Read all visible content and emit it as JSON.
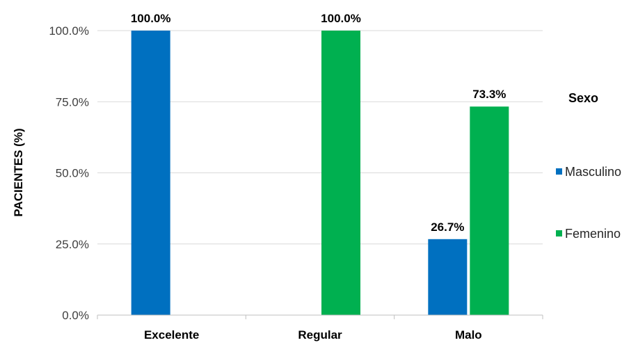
{
  "chart_data": {
    "type": "bar",
    "ylabel": "PACIENTES (%)",
    "categories": [
      "Excelente",
      "Regular",
      "Malo"
    ],
    "series": [
      {
        "name": "Masculino",
        "values": [
          100.0,
          0,
          26.7
        ],
        "color": "#0070C0",
        "labels": [
          "100.0%",
          "",
          "26.7%"
        ]
      },
      {
        "name": "Femenino",
        "values": [
          0,
          100.0,
          73.3
        ],
        "color": "#00B050",
        "labels": [
          "",
          "100.0%",
          "73.3%"
        ]
      }
    ],
    "ylim": [
      0,
      100
    ],
    "yticks": [
      "0.0%",
      "25.0%",
      "50.0%",
      "75.0%",
      "100.0%"
    ],
    "grid": true,
    "legend": {
      "title": "Sexo",
      "position": "right"
    }
  }
}
